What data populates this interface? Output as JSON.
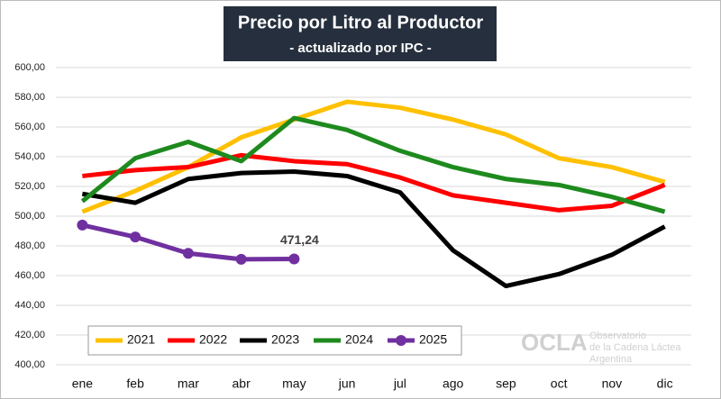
{
  "chart_data": {
    "type": "line",
    "title": "Precio por Litro al Productor",
    "subtitle": "- actualizado por IPC -",
    "categories": [
      "ene",
      "feb",
      "mar",
      "abr",
      "may",
      "jun",
      "jul",
      "ago",
      "sep",
      "oct",
      "nov",
      "dic"
    ],
    "series": [
      {
        "name": "2021",
        "color": "#ffc000",
        "values": [
          503,
          517,
          533,
          553,
          565,
          577,
          573,
          565,
          555,
          539,
          533,
          523
        ]
      },
      {
        "name": "2022",
        "color": "#ff0000",
        "values": [
          527,
          531,
          533,
          541,
          537,
          535,
          526,
          514,
          509,
          504,
          507,
          521
        ]
      },
      {
        "name": "2023",
        "color": "#000000",
        "values": [
          515,
          509,
          525,
          529,
          530,
          527,
          516,
          477,
          453,
          461,
          474,
          493
        ]
      },
      {
        "name": "2024",
        "color": "#1e8a1e",
        "values": [
          510,
          539,
          550,
          537,
          566,
          558,
          544,
          533,
          525,
          521,
          513,
          503
        ]
      },
      {
        "name": "2025",
        "color": "#7030a0",
        "markers": true,
        "values": [
          494,
          486,
          475,
          471,
          471.24,
          null,
          null,
          null,
          null,
          null,
          null,
          null
        ],
        "value_labels": [
          null,
          null,
          null,
          null,
          "471,24",
          null,
          null,
          null,
          null,
          null,
          null,
          null
        ]
      }
    ],
    "ylim": [
      400,
      600
    ],
    "yticks": [
      {
        "value": 400,
        "label": "400,00"
      },
      {
        "value": 420,
        "label": "420,00"
      },
      {
        "value": 440,
        "label": "440,00"
      },
      {
        "value": 460,
        "label": "460,00"
      },
      {
        "value": 480,
        "label": "480,00"
      },
      {
        "value": 500,
        "label": "500,00"
      },
      {
        "value": 520,
        "label": "520,00"
      },
      {
        "value": 540,
        "label": "540,00"
      },
      {
        "value": 560,
        "label": "560,00"
      },
      {
        "value": 580,
        "label": "580,00"
      },
      {
        "value": 600,
        "label": "600,00"
      }
    ],
    "grid": true,
    "legend": "bottom-left",
    "watermark": {
      "logo": "OCLA",
      "lines": [
        "Observatorio",
        "de la Cadena Láctea",
        "Argentina"
      ]
    }
  }
}
